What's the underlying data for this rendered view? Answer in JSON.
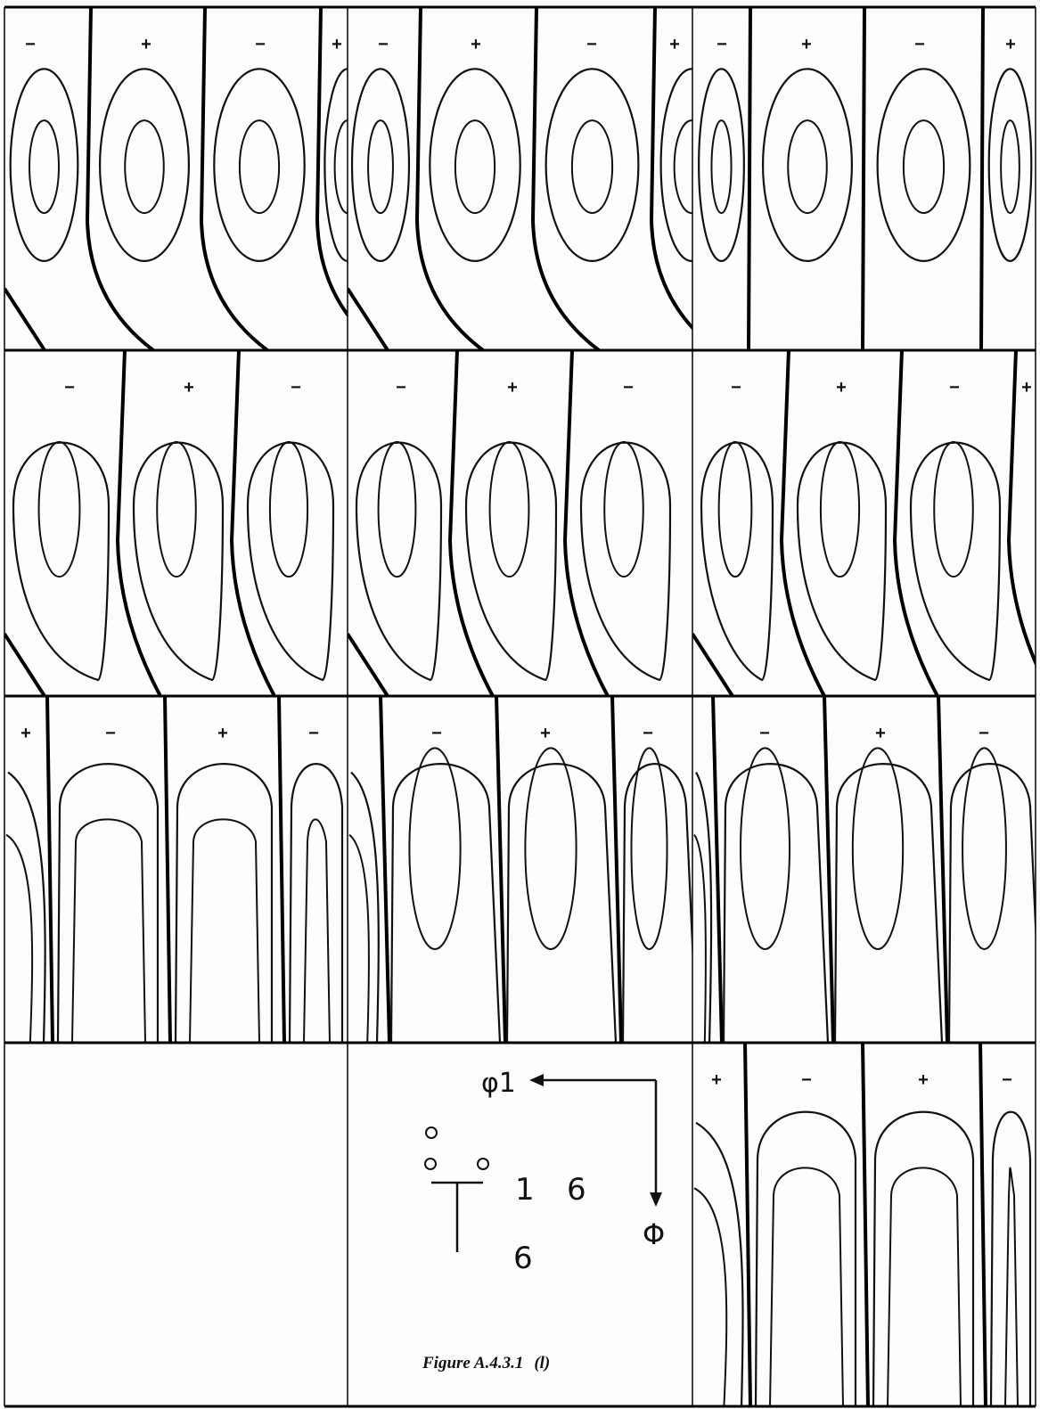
{
  "figure": {
    "caption_label": "Figure A.4.3.1",
    "caption_sub": "(l)"
  },
  "legend": {
    "horizontal_axis": "φ1",
    "vertical_axis": "Φ",
    "symbol": {
      "letter": "T",
      "superscript": "16",
      "subscript": "6",
      "superscript_parts": [
        "1",
        "6"
      ],
      "subscript_part": "6"
    }
  },
  "panels": [
    {
      "row": 0,
      "col": 0,
      "signs": [
        "−",
        "+",
        "−",
        "+"
      ]
    },
    {
      "row": 0,
      "col": 1,
      "signs": [
        "−",
        "+",
        "−",
        "+"
      ]
    },
    {
      "row": 0,
      "col": 2,
      "signs": [
        "−",
        "+",
        "−",
        "+"
      ]
    },
    {
      "row": 1,
      "col": 0,
      "signs": [
        "−",
        "+",
        "−"
      ]
    },
    {
      "row": 1,
      "col": 1,
      "signs": [
        "−",
        "+",
        "−"
      ]
    },
    {
      "row": 1,
      "col": 2,
      "signs": [
        "−",
        "+",
        "−",
        "+"
      ]
    },
    {
      "row": 2,
      "col": 0,
      "signs": [
        "+",
        "−",
        "+",
        "−"
      ]
    },
    {
      "row": 2,
      "col": 1,
      "signs": [
        "−",
        "+",
        "−"
      ]
    },
    {
      "row": 2,
      "col": 2,
      "signs": [
        "−",
        "+",
        "−"
      ]
    },
    {
      "row": 3,
      "col": 0,
      "signs": []
    },
    {
      "row": 3,
      "col": 1,
      "legend": true,
      "signs": []
    },
    {
      "row": 3,
      "col": 2,
      "signs": [
        "+",
        "−",
        "+",
        "−"
      ]
    }
  ]
}
